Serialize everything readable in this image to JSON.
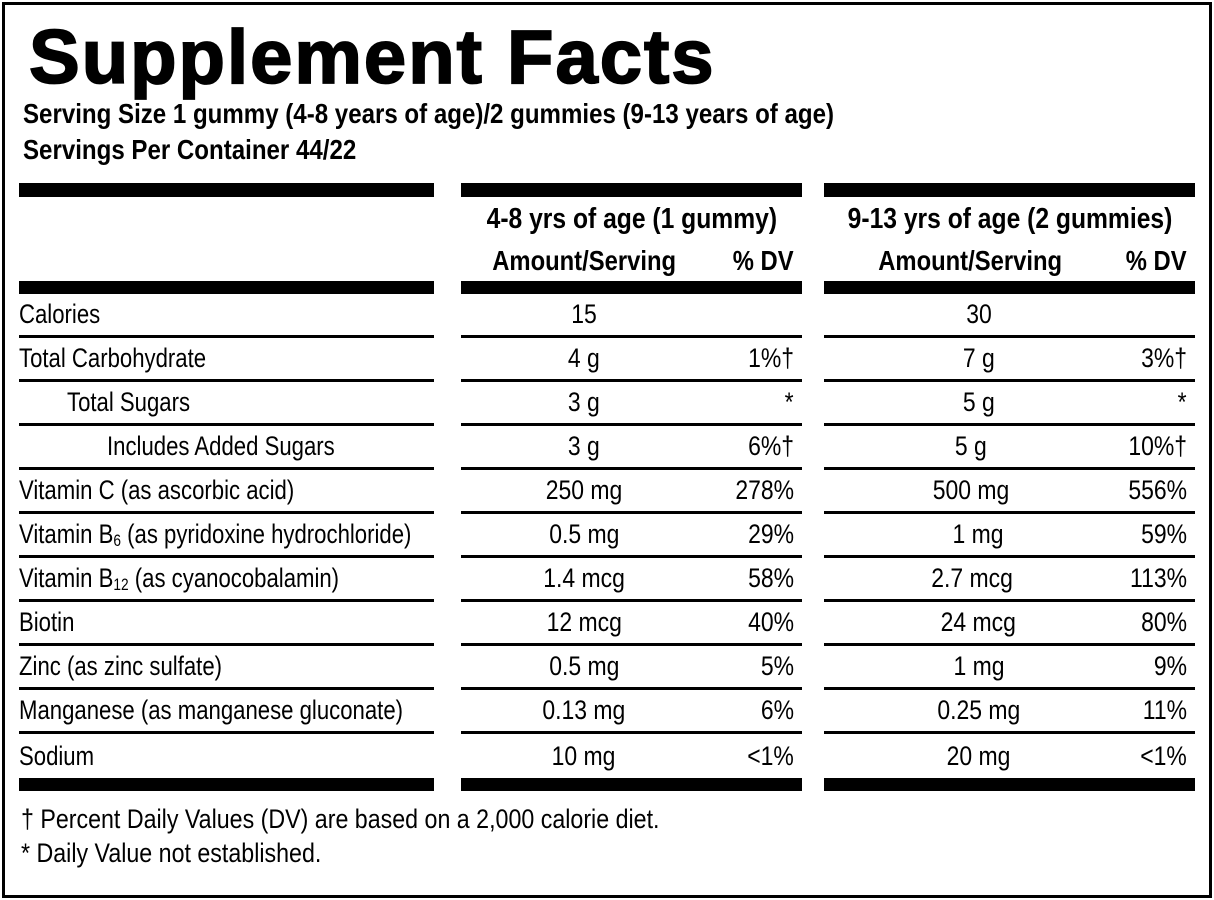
{
  "label": {
    "title": "Supplement Facts",
    "serving_size": "Serving Size 1 gummy (4-8 years of age)/2 gummies (9-13 years of age)",
    "servings_per_container": "Servings Per Container 44/22",
    "columns": [
      {
        "title": "4-8 yrs of age (1 gummy)",
        "amount_header": "Amount/Serving",
        "dv_header": "% DV"
      },
      {
        "title": "9-13 yrs of age (2 gummies)",
        "amount_header": "Amount/Serving",
        "dv_header": "% DV"
      }
    ],
    "rows": [
      {
        "name": "Calories",
        "indent": 0,
        "col1": {
          "amount": "15",
          "dv": ""
        },
        "col2": {
          "amount": "30",
          "dv": ""
        }
      },
      {
        "name": "Total Carbohydrate",
        "indent": 0,
        "col1": {
          "amount": "4 g",
          "dv": "1%†"
        },
        "col2": {
          "amount": "7 g",
          "dv": "3%†"
        }
      },
      {
        "name": "Total Sugars",
        "indent": 1,
        "col1": {
          "amount": "3 g",
          "dv": "*"
        },
        "col2": {
          "amount": "5 g",
          "dv": "*"
        }
      },
      {
        "name": "Includes Added Sugars",
        "indent": 2,
        "col1": {
          "amount": "3 g",
          "dv": "6%†"
        },
        "col2": {
          "amount": "5 g",
          "dv": "10%†"
        }
      },
      {
        "name": "Vitamin C (as ascorbic acid)",
        "indent": 0,
        "col1": {
          "amount": "250 mg",
          "dv": "278%"
        },
        "col2": {
          "amount": "500 mg",
          "dv": "556%"
        }
      },
      {
        "name_pre": "Vitamin B",
        "name_sub": "6",
        "name_post": " (as pyridoxine hydrochloride)",
        "indent": 0,
        "col1": {
          "amount": "0.5 mg",
          "dv": "29%"
        },
        "col2": {
          "amount": "1 mg",
          "dv": "59%"
        }
      },
      {
        "name_pre": "Vitamin B",
        "name_sub": "12",
        "name_post": " (as cyanocobalamin)",
        "indent": 0,
        "col1": {
          "amount": "1.4 mcg",
          "dv": "58%"
        },
        "col2": {
          "amount": "2.7 mcg",
          "dv": "113%"
        }
      },
      {
        "name": "Biotin",
        "indent": 0,
        "col1": {
          "amount": "12 mcg",
          "dv": "40%"
        },
        "col2": {
          "amount": "24 mcg",
          "dv": "80%"
        }
      },
      {
        "name": "Zinc (as zinc sulfate)",
        "indent": 0,
        "col1": {
          "amount": "0.5 mg",
          "dv": "5%"
        },
        "col2": {
          "amount": "1 mg",
          "dv": "9%"
        }
      },
      {
        "name": "Manganese (as manganese gluconate)",
        "indent": 0,
        "col1": {
          "amount": "0.13 mg",
          "dv": "6%"
        },
        "col2": {
          "amount": "0.25 mg",
          "dv": "11%"
        }
      },
      {
        "name": "Sodium",
        "indent": 0,
        "col1": {
          "amount": "10 mg",
          "dv": "<1%"
        },
        "col2": {
          "amount": "20 mg",
          "dv": "<1%"
        }
      }
    ],
    "footnotes": [
      "† Percent Daily Values (DV) are based on a 2,000 calorie diet.",
      "* Daily Value not established."
    ],
    "colors": {
      "ink": "#000000",
      "background": "#ffffff"
    }
  }
}
